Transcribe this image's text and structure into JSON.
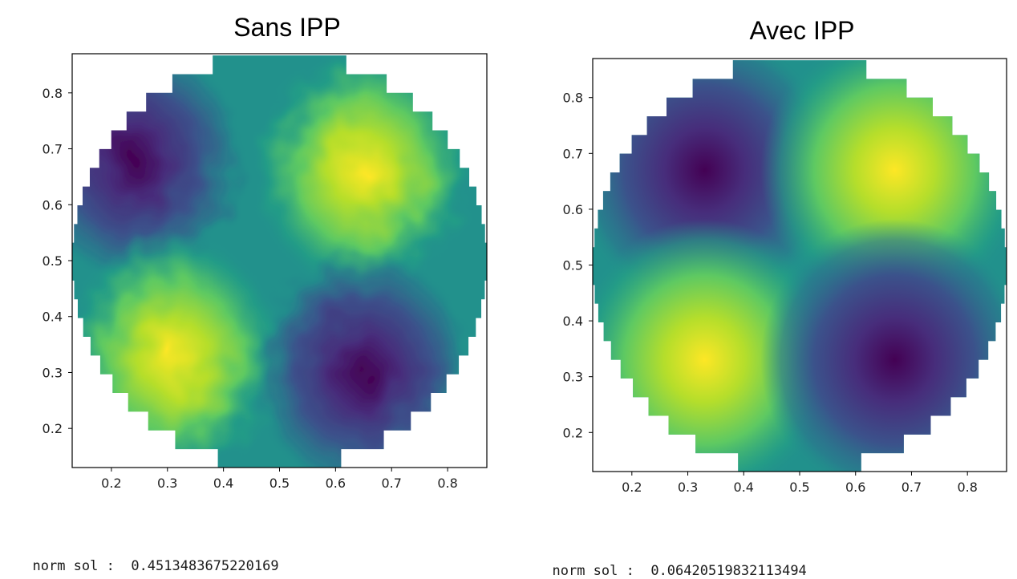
{
  "panels": [
    {
      "title": "Sans IPP",
      "norm_label": "norm sol :",
      "norm_value": "0.4513483675220169"
    },
    {
      "title": "Avec IPP",
      "norm_label": "norm sol :",
      "norm_value": "0.06420519832113494"
    }
  ],
  "chart_data": [
    {
      "type": "heatmap",
      "title": "Sans IPP",
      "colormap": "viridis",
      "xlim": [
        0.13,
        0.87
      ],
      "ylim": [
        0.13,
        0.87
      ],
      "xticks": [
        "0.2",
        "0.3",
        "0.4",
        "0.5",
        "0.6",
        "0.7",
        "0.8"
      ],
      "yticks": [
        "0.2",
        "0.3",
        "0.4",
        "0.5",
        "0.6",
        "0.7",
        "0.8"
      ],
      "domain_shape": "disk",
      "domain_center": [
        0.5,
        0.5
      ],
      "domain_radius": 0.37,
      "extrema": [
        {
          "kind": "min",
          "x": 0.24,
          "y": 0.68
        },
        {
          "kind": "max",
          "x": 0.65,
          "y": 0.66
        },
        {
          "kind": "max",
          "x": 0.31,
          "y": 0.33
        },
        {
          "kind": "min",
          "x": 0.65,
          "y": 0.3
        }
      ],
      "noisy": true
    },
    {
      "type": "heatmap",
      "title": "Avec IPP",
      "colormap": "viridis",
      "xlim": [
        0.13,
        0.87
      ],
      "ylim": [
        0.13,
        0.87
      ],
      "xticks": [
        "0.2",
        "0.3",
        "0.4",
        "0.5",
        "0.6",
        "0.7",
        "0.8"
      ],
      "yticks": [
        "0.2",
        "0.3",
        "0.4",
        "0.5",
        "0.6",
        "0.7",
        "0.8"
      ],
      "domain_shape": "disk",
      "domain_center": [
        0.5,
        0.5
      ],
      "domain_radius": 0.37,
      "extrema": [
        {
          "kind": "min",
          "x": 0.33,
          "y": 0.67
        },
        {
          "kind": "max",
          "x": 0.67,
          "y": 0.67
        },
        {
          "kind": "max",
          "x": 0.33,
          "y": 0.33
        },
        {
          "kind": "min",
          "x": 0.67,
          "y": 0.33
        }
      ],
      "noisy": false
    }
  ]
}
